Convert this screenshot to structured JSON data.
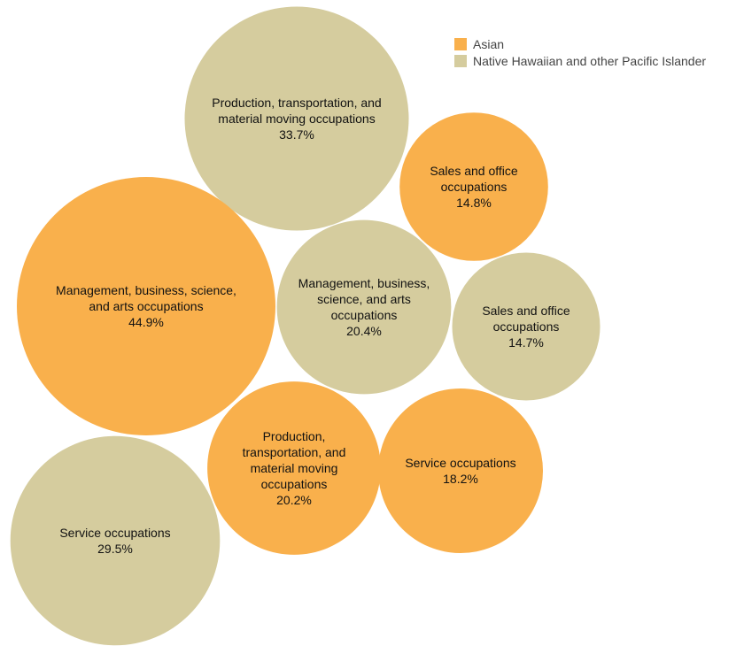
{
  "chart_data": {
    "type": "bubble",
    "legend_position": "top-right",
    "series": [
      {
        "name": "Asian",
        "color": "#f9b04c"
      },
      {
        "name": "Native Hawaiian and other Pacific Islander",
        "color": "#d5cc9e"
      }
    ],
    "bubbles": [
      {
        "series": 1,
        "lines": [
          "Production, transportation, and",
          "material moving occupations"
        ],
        "value_label": "33.7%",
        "value": 33.7
      },
      {
        "series": 0,
        "lines": [
          "Sales and office",
          "occupations"
        ],
        "value_label": "14.8%",
        "value": 14.8
      },
      {
        "series": 0,
        "lines": [
          "Management, business, science,",
          "and arts occupations"
        ],
        "value_label": "44.9%",
        "value": 44.9
      },
      {
        "series": 1,
        "lines": [
          "Management, business,",
          "science, and arts",
          "occupations"
        ],
        "value_label": "20.4%",
        "value": 20.4
      },
      {
        "series": 1,
        "lines": [
          "Sales and office",
          "occupations"
        ],
        "value_label": "14.7%",
        "value": 14.7
      },
      {
        "series": 0,
        "lines": [
          "Production,",
          "transportation, and",
          "material moving",
          "occupations"
        ],
        "value_label": "20.2%",
        "value": 20.2
      },
      {
        "series": 0,
        "lines": [
          "Service occupations"
        ],
        "value_label": "18.2%",
        "value": 18.2
      },
      {
        "series": 1,
        "lines": [
          "Service occupations"
        ],
        "value_label": "29.5%",
        "value": 29.5
      }
    ]
  }
}
